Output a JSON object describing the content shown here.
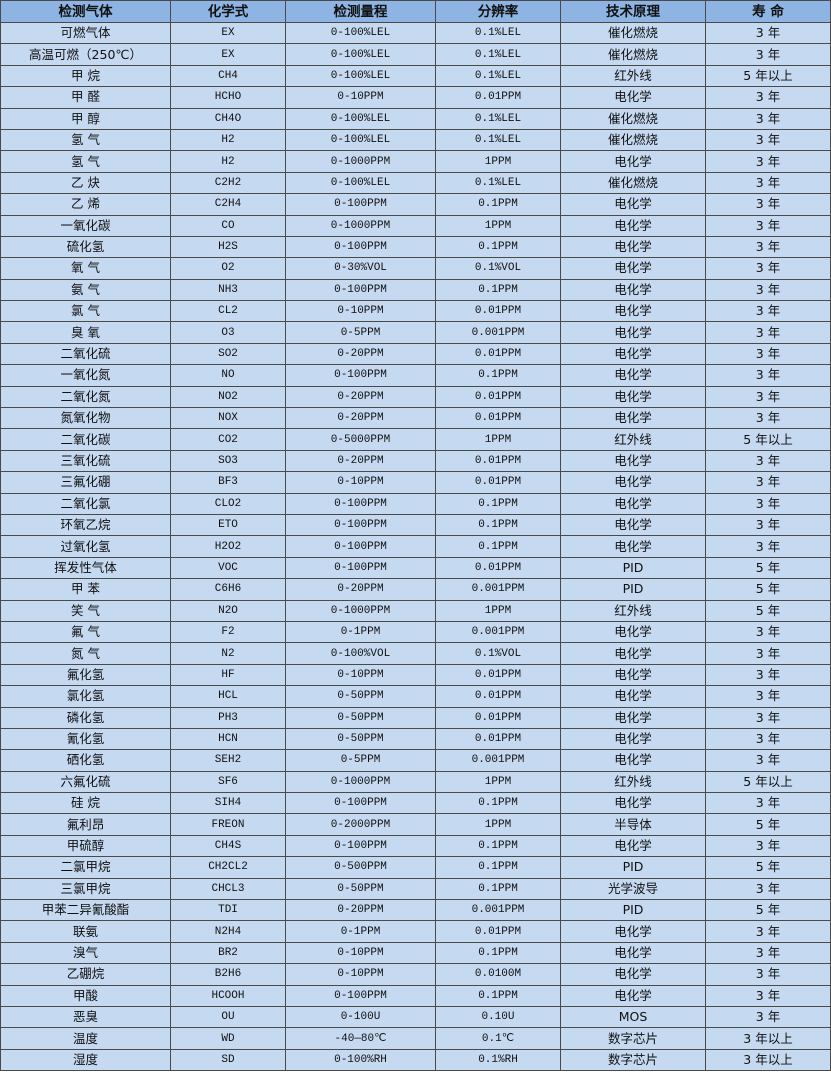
{
  "colors": {
    "header_bg": "#8db4e2",
    "cell_bg": "#c5d9f1",
    "border": "#4a4a4a"
  },
  "headers": [
    "检测气体",
    "化学式",
    "检测量程",
    "分辨率",
    "技术原理",
    "寿 命"
  ],
  "rows": [
    [
      "可燃气体",
      "EX",
      "0-100%LEL",
      "0.1%LEL",
      "催化燃烧",
      "3 年"
    ],
    [
      "高温可燃（250℃）",
      "EX",
      "0-100%LEL",
      "0.1%LEL",
      "催化燃烧",
      "3 年"
    ],
    [
      "甲 烷",
      "CH4",
      "0-100%LEL",
      "0.1%LEL",
      "红外线",
      "5 年以上"
    ],
    [
      "甲 醛",
      "HCHO",
      "0-10PPM",
      "0.01PPM",
      "电化学",
      "3 年"
    ],
    [
      "甲 醇",
      "CH4O",
      "0-100%LEL",
      "0.1%LEL",
      "催化燃烧",
      "3 年"
    ],
    [
      "氢 气",
      "H2",
      "0-100%LEL",
      "0.1%LEL",
      "催化燃烧",
      "3 年"
    ],
    [
      "氢 气",
      "H2",
      "0-1000PPM",
      "1PPM",
      "电化学",
      "3 年"
    ],
    [
      "乙 炔",
      "C2H2",
      "0-100%LEL",
      "0.1%LEL",
      "催化燃烧",
      "3 年"
    ],
    [
      "乙 烯",
      "C2H4",
      "0-100PPM",
      "0.1PPM",
      "电化学",
      "3 年"
    ],
    [
      "一氧化碳",
      "CO",
      "0-1000PPM",
      "1PPM",
      "电化学",
      "3 年"
    ],
    [
      "硫化氢",
      "H2S",
      "0-100PPM",
      "0.1PPM",
      "电化学",
      "3 年"
    ],
    [
      "氧 气",
      "O2",
      "0-30%VOL",
      "0.1%VOL",
      "电化学",
      "3 年"
    ],
    [
      "氨 气",
      "NH3",
      "0-100PPM",
      "0.1PPM",
      "电化学",
      "3 年"
    ],
    [
      "氯 气",
      "CL2",
      "0-10PPM",
      "0.01PPM",
      "电化学",
      "3 年"
    ],
    [
      "臭 氧",
      "O3",
      "0-5PPM",
      "0.001PPM",
      "电化学",
      "3 年"
    ],
    [
      "二氧化硫",
      "SO2",
      "0-20PPM",
      "0.01PPM",
      "电化学",
      "3 年"
    ],
    [
      "一氧化氮",
      "NO",
      "0-100PPM",
      "0.1PPM",
      "电化学",
      "3 年"
    ],
    [
      "二氧化氮",
      "NO2",
      "0-20PPM",
      "0.01PPM",
      "电化学",
      "3 年"
    ],
    [
      "氮氧化物",
      "NOX",
      "0-20PPM",
      "0.01PPM",
      "电化学",
      "3 年"
    ],
    [
      "二氧化碳",
      "CO2",
      "0-5000PPM",
      "1PPM",
      "红外线",
      "5 年以上"
    ],
    [
      "三氧化硫",
      "SO3",
      "0-20PPM",
      "0.01PPM",
      "电化学",
      "3 年"
    ],
    [
      "三氟化硼",
      "BF3",
      "0-10PPM",
      "0.01PPM",
      "电化学",
      "3 年"
    ],
    [
      "二氧化氯",
      "CLO2",
      "0-100PPM",
      "0.1PPM",
      "电化学",
      "3 年"
    ],
    [
      "环氧乙烷",
      "ETO",
      "0-100PPM",
      "0.1PPM",
      "电化学",
      "3 年"
    ],
    [
      "过氧化氢",
      "H2O2",
      "0-100PPM",
      "0.1PPM",
      "电化学",
      "3 年"
    ],
    [
      "挥发性气体",
      "VOC",
      "0-100PPM",
      "0.01PPM",
      "PID",
      "5 年"
    ],
    [
      "甲 苯",
      "C6H6",
      "0-20PPM",
      "0.001PPM",
      "PID",
      "5 年"
    ],
    [
      "笑 气",
      "N2O",
      "0-1000PPM",
      "1PPM",
      "红外线",
      "5 年"
    ],
    [
      "氟 气",
      "F2",
      "0-1PPM",
      "0.001PPM",
      "电化学",
      "3 年"
    ],
    [
      "氮 气",
      "N2",
      "0-100%VOL",
      "0.1%VOL",
      "电化学",
      "3 年"
    ],
    [
      "氟化氢",
      "HF",
      "0-10PPM",
      "0.01PPM",
      "电化学",
      "3 年"
    ],
    [
      "氯化氢",
      "HCL",
      "0-50PPM",
      "0.01PPM",
      "电化学",
      "3 年"
    ],
    [
      "磷化氢",
      "PH3",
      "0-50PPM",
      "0.01PPM",
      "电化学",
      "3 年"
    ],
    [
      "氰化氢",
      "HCN",
      "0-50PPM",
      "0.01PPM",
      "电化学",
      "3 年"
    ],
    [
      "硒化氢",
      "SEH2",
      "0-5PPM",
      "0.001PPM",
      "电化学",
      "3 年"
    ],
    [
      "六氟化硫",
      "SF6",
      "0-1000PPM",
      "1PPM",
      "红外线",
      "5 年以上"
    ],
    [
      "硅 烷",
      "SIH4",
      "0-100PPM",
      "0.1PPM",
      "电化学",
      "3 年"
    ],
    [
      "氟利昂",
      "FREON",
      "0-2000PPM",
      "1PPM",
      "半导体",
      "5 年"
    ],
    [
      "甲硫醇",
      "CH4S",
      "0-100PPM",
      "0.1PPM",
      "电化学",
      "3 年"
    ],
    [
      "二氯甲烷",
      "CH2CL2",
      "0-500PPM",
      "0.1PPM",
      "PID",
      "5 年"
    ],
    [
      "三氯甲烷",
      "CHCL3",
      "0-50PPM",
      "0.1PPM",
      "光学波导",
      "3 年"
    ],
    [
      "甲苯二异氰酸酯",
      "TDI",
      "0-20PPM",
      "0.001PPM",
      "PID",
      "5 年"
    ],
    [
      "联氨",
      "N2H4",
      "0-1PPM",
      "0.01PPM",
      "电化学",
      "3 年"
    ],
    [
      "溴气",
      "BR2",
      "0-10PPM",
      "0.1PPM",
      "电化学",
      "3 年"
    ],
    [
      "乙硼烷",
      "B2H6",
      "0-10PPM",
      "0.0100M",
      "电化学",
      "3 年"
    ],
    [
      "甲酸",
      "HCOOH",
      "0-100PPM",
      "0.1PPM",
      "电化学",
      "3 年"
    ],
    [
      "恶臭",
      "OU",
      "0-100U",
      "0.10U",
      "MOS",
      "3 年"
    ],
    [
      "温度",
      "WD",
      "-40—80℃",
      "0.1℃",
      "数字芯片",
      "3 年以上"
    ],
    [
      "湿度",
      "SD",
      "0-100%RH",
      "0.1%RH",
      "数字芯片",
      "3 年以上"
    ]
  ]
}
